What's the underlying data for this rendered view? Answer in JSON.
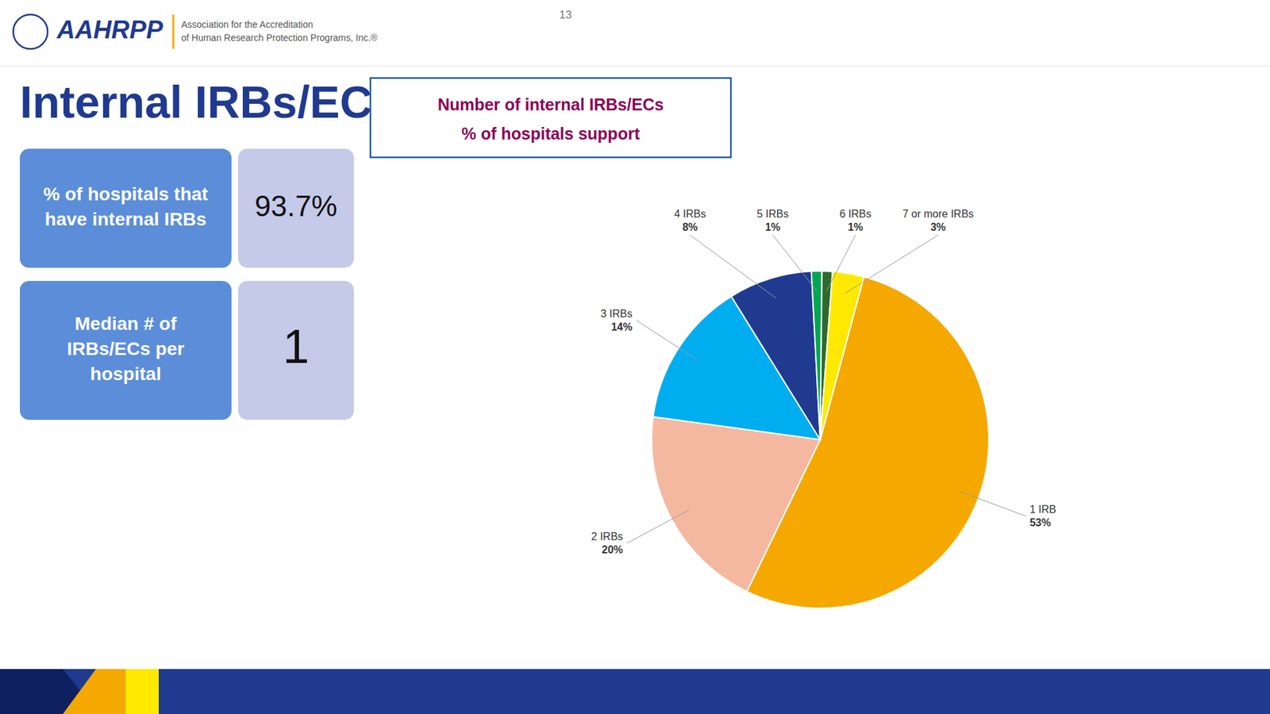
{
  "chart_data": {
    "type": "pie",
    "title": "Number of internal IRBs/ECs",
    "subtitle": "% of hospitals support",
    "categories": [
      "1 IRB",
      "2 IRBs",
      "3 IRBs",
      "4 IRBs",
      "5 IRBs",
      "6 IRBs",
      "7 or more IRBs"
    ],
    "values": [
      53,
      20,
      14,
      8,
      1,
      1,
      3
    ],
    "value_labels": [
      "53%",
      "20%",
      "14%",
      "8%",
      "1%",
      "1%",
      "3%"
    ],
    "colors": [
      "#F5A800",
      "#F4B8A0",
      "#00AEEF",
      "#1F3A8F",
      "#00A651",
      "#2D6A2D",
      "#FFE900"
    ],
    "data_labels": true,
    "annotations": [
      "Internal IRBs/ECs",
      "AAHRPP",
      "Association for the Accreditation",
      "of Human Research Protection Programs, Inc.®",
      "% of hospitals that\nhave internal IRBs",
      "93.7%",
      "Median # of\nIRBs/ECs per\nhospital",
      "1",
      "13"
    ]
  }
}
